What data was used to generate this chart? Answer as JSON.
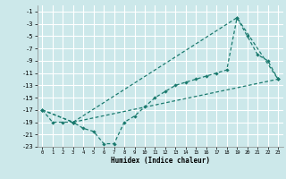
{
  "title": "",
  "xlabel": "Humidex (Indice chaleur)",
  "bg_color": "#cce8ea",
  "grid_color": "#ffffff",
  "line_color": "#1a7a6e",
  "xlim": [
    -0.5,
    23.5
  ],
  "ylim": [
    -23,
    0
  ],
  "xticks": [
    0,
    1,
    2,
    3,
    4,
    5,
    6,
    7,
    8,
    9,
    10,
    11,
    12,
    13,
    14,
    15,
    16,
    17,
    18,
    19,
    20,
    21,
    22,
    23
  ],
  "yticks": [
    -1,
    -3,
    -5,
    -7,
    -9,
    -11,
    -13,
    -15,
    -17,
    -19,
    -21,
    -23
  ],
  "line1_x": [
    0,
    1,
    2,
    3,
    4,
    5,
    6,
    7,
    8,
    9,
    10,
    11,
    12,
    13,
    14,
    15,
    16,
    17,
    18,
    19,
    20,
    21,
    22,
    23
  ],
  "line1_y": [
    -17,
    -19,
    -19,
    -19,
    -20,
    -20.5,
    -22.5,
    -22.5,
    -19,
    -18,
    -16.5,
    -15,
    -14,
    -13,
    -12.5,
    -12,
    -11.5,
    -11,
    -10.5,
    -2,
    -5,
    -8,
    -9,
    -12
  ],
  "line2_x": [
    0,
    3,
    23
  ],
  "line2_y": [
    -17,
    -19,
    -12
  ],
  "line3_x": [
    0,
    3,
    19,
    23
  ],
  "line3_y": [
    -17,
    -19,
    -2,
    -12
  ]
}
